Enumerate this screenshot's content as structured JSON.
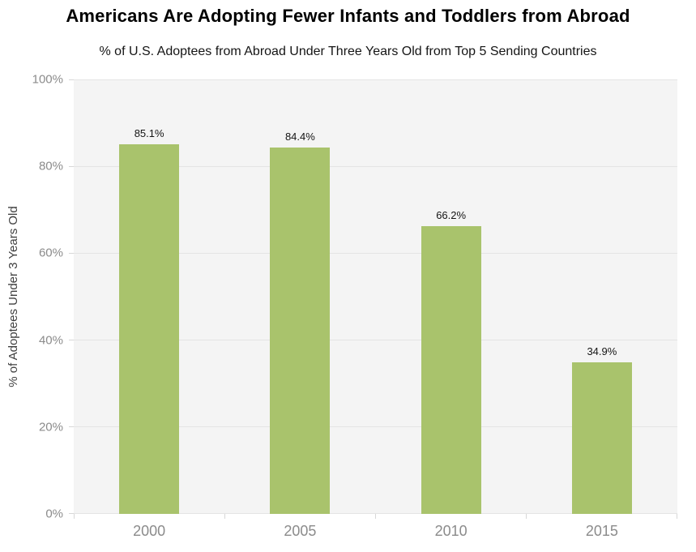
{
  "chart_data": {
    "type": "bar",
    "title": "Americans Are Adopting Fewer Infants and Toddlers from Abroad",
    "subtitle": "% of U.S. Adoptees from Abroad Under Three Years Old from Top 5 Sending Countries",
    "categories": [
      "2000",
      "2005",
      "2010",
      "2015"
    ],
    "values": [
      85.1,
      84.4,
      66.2,
      34.9
    ],
    "data_labels": [
      "85.1%",
      "84.4%",
      "66.2%",
      "34.9%"
    ],
    "xlabel": "",
    "ylabel": "% of Adoptees Under 3 Years Old",
    "ylim": [
      0,
      100
    ],
    "yticks": [
      0,
      20,
      40,
      60,
      80,
      100
    ],
    "ytick_labels": [
      "0%",
      "20%",
      "40%",
      "60%",
      "80%",
      "100%"
    ],
    "grid": true,
    "legend": false,
    "colors": {
      "bar": "#a9c36c",
      "plot_background": "#f4f4f4",
      "gridline": "#e4e4e4",
      "tick": "#d7d7d7",
      "axis_label": "#8b8b8b",
      "axis_title": "#3f3f3f",
      "data_label": "#141414",
      "title": "#000000"
    }
  }
}
